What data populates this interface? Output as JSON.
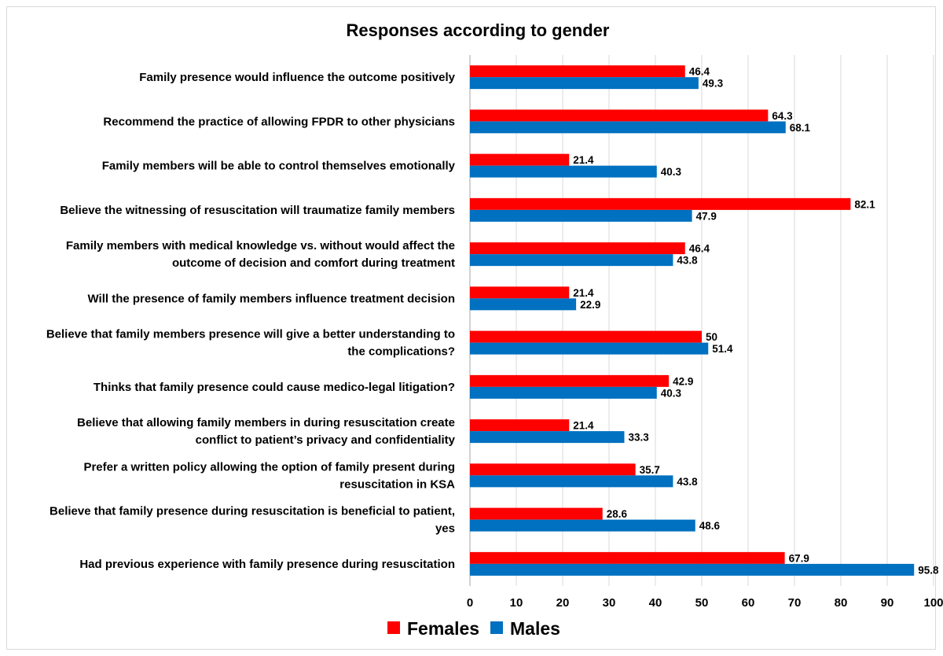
{
  "chart_data": {
    "type": "bar",
    "orientation": "horizontal",
    "title": "Responses according to gender",
    "xlabel": "",
    "ylabel": "",
    "xlim": [
      0,
      100
    ],
    "x_ticks": [
      0,
      10,
      20,
      30,
      40,
      50,
      60,
      70,
      80,
      90,
      100
    ],
    "grid": true,
    "legend_position": "bottom",
    "categories": [
      [
        "Family presence would influence the outcome positively"
      ],
      [
        "Recommend the practice of allowing FPDR to other physicians"
      ],
      [
        "Family members will be able to control themselves emotionally"
      ],
      [
        "Believe the witnessing of resuscitation will traumatize family members"
      ],
      [
        "Family members with medical knowledge vs. without would affect the",
        "outcome of decision and comfort during treatment"
      ],
      [
        "Will the presence of family members influence treatment decision"
      ],
      [
        "Believe that family members presence will give a better understanding to",
        "the complications?"
      ],
      [
        "Thinks that family presence could cause medico-legal litigation?"
      ],
      [
        "Believe that allowing family members in during resuscitation create",
        "conflict to patient’s privacy and confidentiality"
      ],
      [
        "Prefer a written policy allowing the option of family present during",
        "resuscitation in KSA"
      ],
      [
        "Believe that family presence during resuscitation is beneficial to patient,",
        "yes"
      ],
      [
        "Had previous experience with family presence during resuscitation"
      ]
    ],
    "series": [
      {
        "name": "Females",
        "color": "#ff0000",
        "values": [
          46.4,
          64.3,
          21.4,
          82.1,
          46.4,
          21.4,
          50,
          42.9,
          21.4,
          35.7,
          28.6,
          67.9
        ]
      },
      {
        "name": "Males",
        "color": "#0070c0",
        "values": [
          49.3,
          68.1,
          40.3,
          47.9,
          43.8,
          22.9,
          51.4,
          40.3,
          33.3,
          43.8,
          48.6,
          95.8
        ]
      }
    ]
  }
}
